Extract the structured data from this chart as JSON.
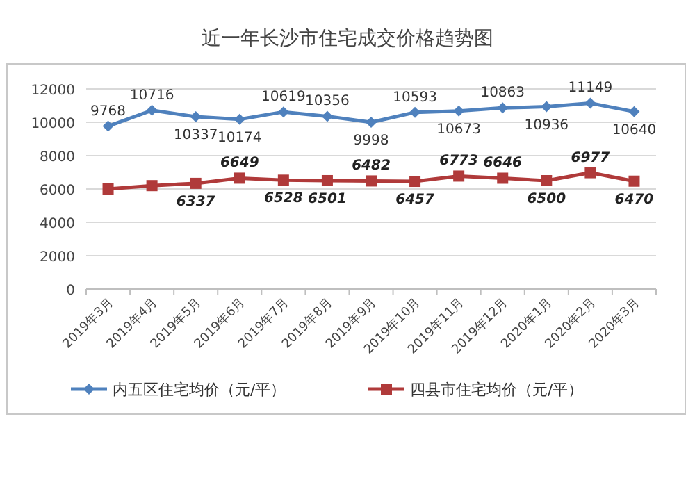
{
  "chart_data": {
    "type": "line",
    "title": "近一年长沙市住宅成交价格趋势图",
    "categories": [
      "2019年3月",
      "2019年4月",
      "2019年5月",
      "2019年6月",
      "2019年7月",
      "2019年8月",
      "2019年9月",
      "2019年10月",
      "2019年11月",
      "2019年12月",
      "2020年1月",
      "2020年2月",
      "2020年3月"
    ],
    "series": [
      {
        "name": "内五区住宅均价（元/平）",
        "color": "#4f81bd",
        "marker": "diamond",
        "values": [
          9768,
          10716,
          10337,
          10174,
          10619,
          10356,
          9998,
          10593,
          10673,
          10863,
          10936,
          11149,
          10640
        ],
        "value_labels": [
          "9768",
          "10716",
          "10337",
          "10174",
          "10619",
          "10356",
          "9998",
          "10593",
          "10673",
          "10863",
          "10936",
          "11149",
          "10640"
        ]
      },
      {
        "name": "四县市住宅均价（元/平）",
        "color": "#b03a3a",
        "marker": "square",
        "values": [
          6000,
          6200,
          6337,
          6649,
          6528,
          6501,
          6482,
          6457,
          6773,
          6646,
          6500,
          6977,
          6470
        ],
        "value_labels": [
          null,
          null,
          "6337",
          "6649",
          "6528",
          "6501",
          "6482",
          "6457",
          "6773",
          "6646",
          "6500",
          "6977",
          "6470"
        ]
      }
    ],
    "ylim": [
      0,
      12000
    ],
    "yticks": [
      0,
      2000,
      4000,
      6000,
      8000,
      10000,
      12000
    ],
    "grid": "y",
    "legend": "bottom"
  }
}
